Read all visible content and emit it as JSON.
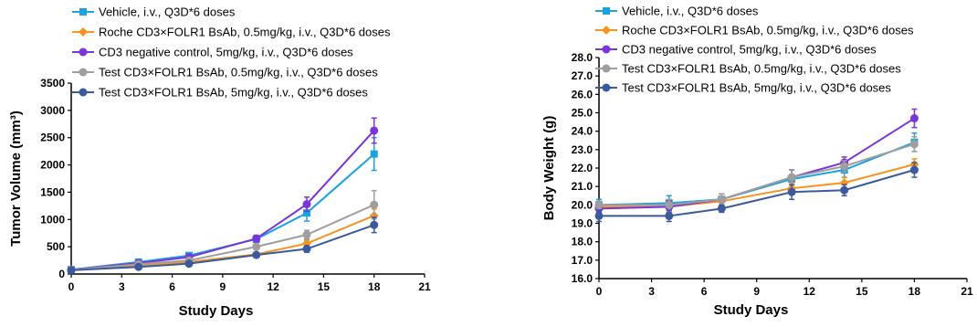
{
  "chart_data": [
    {
      "type": "line",
      "xlabel": "Study Days",
      "ylabel": "Tumor Volume (mm³)",
      "xlim": [
        0,
        21
      ],
      "ylim": [
        0,
        3500
      ],
      "xticks": [
        "0",
        "3",
        "6",
        "9",
        "12",
        "15",
        "18",
        "21"
      ],
      "yticks": [
        "0",
        "500",
        "1000",
        "1500",
        "2000",
        "2500",
        "3000",
        "3500"
      ],
      "x": [
        0,
        4,
        7,
        11,
        14,
        18
      ],
      "legend": "top-left",
      "series": [
        {
          "name": "Vehicle, i.v., Q3D*6 doses",
          "color": "#1ba3e0",
          "marker": "square",
          "values": [
            80,
            220,
            340,
            640,
            1120,
            2200
          ],
          "errors": [
            20,
            30,
            40,
            60,
            150,
            300
          ]
        },
        {
          "name": "Roche CD3×FOLR1 BsAb, 0.5mg/kg, i.v., Q3D*6 doses",
          "color": "#f7921e",
          "marker": "diamond",
          "values": [
            75,
            150,
            220,
            360,
            560,
            1070
          ],
          "errors": [
            15,
            20,
            30,
            40,
            60,
            120
          ]
        },
        {
          "name": "CD3 negative control, 5mg/kg, i.v., Q3D*6 doses",
          "color": "#7a35d9",
          "marker": "circle",
          "values": [
            80,
            200,
            310,
            650,
            1280,
            2630
          ],
          "errors": [
            20,
            30,
            40,
            60,
            130,
            230
          ]
        },
        {
          "name": "Test CD3×FOLR1 BsAb, 0.5mg/kg, i.v., Q3D*6 doses",
          "color": "#9e9e9e",
          "marker": "circle",
          "values": [
            75,
            180,
            250,
            500,
            720,
            1270
          ],
          "errors": [
            15,
            25,
            30,
            50,
            80,
            260
          ]
        },
        {
          "name": "Test CD3×FOLR1 BsAb, 5mg/kg, i.v., Q3D*6 doses",
          "color": "#3a5a9c",
          "marker": "circle",
          "values": [
            70,
            130,
            190,
            350,
            460,
            900
          ],
          "errors": [
            15,
            20,
            25,
            40,
            60,
            140
          ]
        }
      ]
    },
    {
      "type": "line",
      "xlabel": "Study Days",
      "ylabel": "Body Weight (g)",
      "xlim": [
        0,
        21
      ],
      "ylim": [
        16,
        28
      ],
      "xticks": [
        "0",
        "3",
        "6",
        "9",
        "12",
        "15",
        "18",
        "21"
      ],
      "yticks": [
        "16.0",
        "17.0",
        "18.0",
        "19.0",
        "20.0",
        "21.0",
        "22.0",
        "23.0",
        "24.0",
        "25.0",
        "26.0",
        "27.0",
        "28.0"
      ],
      "x": [
        0,
        4,
        7,
        11,
        14,
        18
      ],
      "legend": "top",
      "series": [
        {
          "name": "Vehicle, i.v., Q3D*6 doses",
          "color": "#1ba3e0",
          "marker": "square",
          "values": [
            20.0,
            20.1,
            20.3,
            21.4,
            21.9,
            23.4
          ],
          "errors": [
            0.3,
            0.4,
            0.3,
            0.5,
            0.4,
            0.5
          ]
        },
        {
          "name": "Roche CD3×FOLR1 BsAb, 0.5mg/kg, i.v., Q3D*6 doses",
          "color": "#f7921e",
          "marker": "diamond",
          "values": [
            19.9,
            19.9,
            20.2,
            20.9,
            21.2,
            22.2
          ],
          "errors": [
            0.2,
            0.3,
            0.2,
            0.3,
            0.3,
            0.3
          ]
        },
        {
          "name": "CD3 negative control, 5mg/kg, i.v., Q3D*6 doses",
          "color": "#7a35d9",
          "marker": "circle",
          "values": [
            19.8,
            19.9,
            20.3,
            21.5,
            22.3,
            24.7
          ],
          "errors": [
            0.2,
            0.3,
            0.3,
            0.4,
            0.3,
            0.5
          ]
        },
        {
          "name": "Test CD3×FOLR1 BsAb, 0.5mg/kg, i.v., Q3D*6 doses",
          "color": "#9e9e9e",
          "marker": "circle",
          "values": [
            20.0,
            20.0,
            20.3,
            21.5,
            22.1,
            23.3
          ],
          "errors": [
            0.2,
            0.3,
            0.3,
            0.4,
            0.3,
            0.4
          ]
        },
        {
          "name": "Test CD3×FOLR1 BsAb, 5mg/kg, i.v., Q3D*6 doses",
          "color": "#3a5a9c",
          "marker": "circle",
          "values": [
            19.4,
            19.4,
            19.8,
            20.7,
            20.8,
            21.9
          ],
          "errors": [
            0.3,
            0.3,
            0.2,
            0.4,
            0.3,
            0.4
          ]
        }
      ]
    }
  ]
}
